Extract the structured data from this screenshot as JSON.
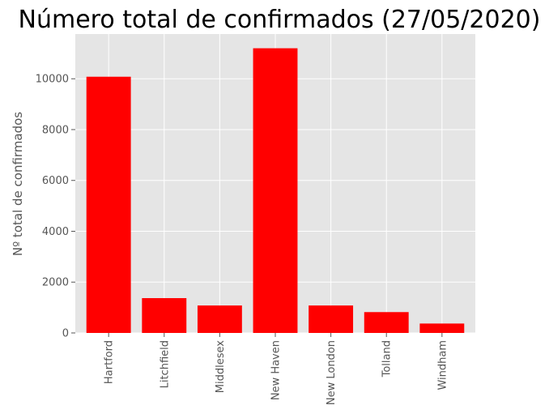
{
  "chart_data": {
    "type": "bar",
    "title": "Número total de confirmados (27/05/2020)",
    "xlabel": "",
    "ylabel": "Nº total de confirmados",
    "categories": [
      "Hartford",
      "Litchfield",
      "Middlesex",
      "New Haven",
      "New London",
      "Tolland",
      "Windham"
    ],
    "values": [
      10080,
      1370,
      1080,
      11200,
      1080,
      820,
      370
    ],
    "ylim": [
      0,
      11760
    ],
    "yticks": [
      0,
      2000,
      4000,
      6000,
      8000,
      10000
    ],
    "ytick_labels": [
      "0",
      "2000",
      "4000",
      "6000",
      "8000",
      "10000"
    ],
    "grid": true,
    "bar_color": "#ff0000",
    "background_color": "#e5e5e5",
    "grid_color": "#ffffff"
  }
}
